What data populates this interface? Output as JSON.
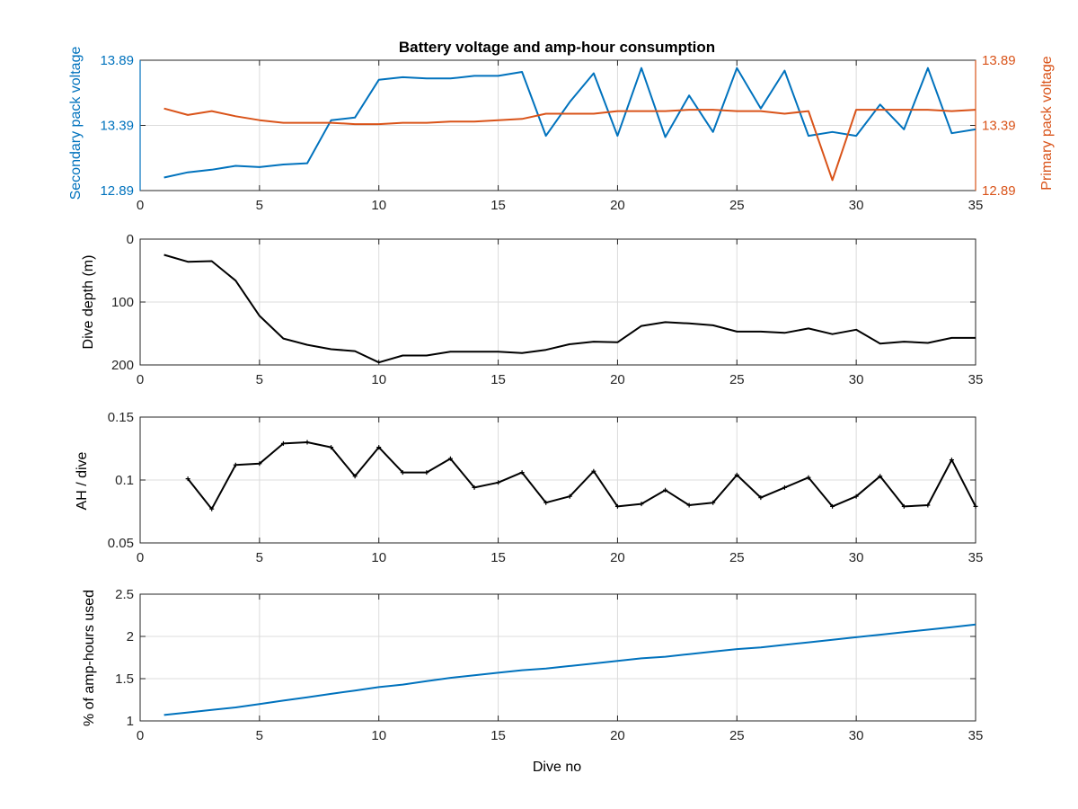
{
  "chart_data": [
    {
      "type": "line",
      "title": "Battery voltage and amp-hour consumption",
      "xlabel": "",
      "xlim": [
        0,
        35
      ],
      "xticks": [
        0,
        5,
        10,
        15,
        20,
        25,
        30,
        35
      ],
      "ylabel_left": "Secondary pack voltage",
      "ylabel_right": "Primary pack voltage",
      "ylim": [
        12.89,
        13.89
      ],
      "yticks": [
        12.89,
        13.39,
        13.89
      ],
      "ytick_labels": [
        "12.89",
        "13.39",
        "13.89"
      ],
      "grid": true,
      "series": [
        {
          "axis": "left",
          "color": "#0072BD",
          "x": [
            1,
            2,
            3,
            4,
            5,
            6,
            7,
            8,
            9,
            10,
            11,
            12,
            13,
            14,
            15,
            16,
            17,
            18,
            19,
            20,
            21,
            22,
            23,
            24,
            25,
            26,
            27,
            28,
            29,
            30,
            31,
            32,
            33,
            34,
            35
          ],
          "values": [
            12.99,
            13.03,
            13.05,
            13.08,
            13.07,
            13.09,
            13.1,
            13.43,
            13.45,
            13.74,
            13.76,
            13.75,
            13.75,
            13.77,
            13.77,
            13.8,
            13.31,
            13.57,
            13.79,
            13.31,
            13.83,
            13.3,
            13.62,
            13.34,
            13.83,
            13.52,
            13.81,
            13.31,
            13.34,
            13.31,
            13.55,
            13.36,
            13.83,
            13.33,
            13.36
          ]
        },
        {
          "axis": "right",
          "color": "#D95319",
          "x": [
            1,
            2,
            3,
            4,
            5,
            6,
            7,
            8,
            9,
            10,
            11,
            12,
            13,
            14,
            15,
            16,
            17,
            18,
            19,
            20,
            21,
            22,
            23,
            24,
            25,
            26,
            27,
            28,
            29,
            30,
            31,
            32,
            33,
            34,
            35
          ],
          "values": [
            13.52,
            13.47,
            13.5,
            13.46,
            13.43,
            13.41,
            13.41,
            13.41,
            13.4,
            13.4,
            13.41,
            13.41,
            13.42,
            13.42,
            13.43,
            13.44,
            13.48,
            13.48,
            13.48,
            13.5,
            13.5,
            13.5,
            13.51,
            13.51,
            13.5,
            13.5,
            13.48,
            13.5,
            12.97,
            13.51,
            13.51,
            13.51,
            13.51,
            13.5,
            13.51
          ]
        }
      ]
    },
    {
      "type": "line",
      "ylabel": "Dive depth (m)",
      "xlim": [
        0,
        35
      ],
      "xticks": [
        0,
        5,
        10,
        15,
        20,
        25,
        30,
        35
      ],
      "ylim": [
        0,
        200
      ],
      "y_reversed": true,
      "yticks": [
        0,
        100,
        200
      ],
      "ytick_labels": [
        "0",
        "100",
        "200"
      ],
      "grid": true,
      "series": [
        {
          "color": "#000000",
          "x": [
            1,
            2,
            3,
            4,
            5,
            6,
            7,
            8,
            9,
            10,
            11,
            12,
            13,
            14,
            15,
            16,
            17,
            18,
            19,
            20,
            21,
            22,
            23,
            24,
            25,
            26,
            27,
            28,
            29,
            30,
            31,
            32,
            33,
            34,
            35
          ],
          "values": [
            25,
            36,
            35,
            66,
            122,
            158,
            168,
            175,
            178,
            196,
            185,
            185,
            179,
            179,
            179,
            181,
            176,
            167,
            163,
            164,
            138,
            132,
            134,
            137,
            147,
            147,
            149,
            142,
            151,
            144,
            166,
            163,
            165,
            157,
            157
          ]
        }
      ]
    },
    {
      "type": "line",
      "ylabel": "AH / dive",
      "xlim": [
        0,
        35
      ],
      "xticks": [
        0,
        5,
        10,
        15,
        20,
        25,
        30,
        35
      ],
      "ylim": [
        0.05,
        0.15
      ],
      "yticks": [
        0.05,
        0.1,
        0.15
      ],
      "ytick_labels": [
        "0.05",
        "0.1",
        "0.15"
      ],
      "grid": true,
      "series": [
        {
          "color": "#000000",
          "markers": true,
          "x": [
            2,
            3,
            4,
            5,
            6,
            7,
            8,
            9,
            10,
            11,
            12,
            13,
            14,
            15,
            16,
            17,
            18,
            19,
            20,
            21,
            22,
            23,
            24,
            25,
            26,
            27,
            28,
            29,
            30,
            31,
            32,
            33,
            34,
            35
          ],
          "values": [
            0.101,
            0.077,
            0.112,
            0.113,
            0.129,
            0.13,
            0.126,
            0.103,
            0.126,
            0.106,
            0.106,
            0.117,
            0.094,
            0.098,
            0.106,
            0.082,
            0.087,
            0.107,
            0.079,
            0.081,
            0.092,
            0.08,
            0.082,
            0.104,
            0.086,
            0.094,
            0.102,
            0.079,
            0.087,
            0.103,
            0.079,
            0.08,
            0.116,
            0.079
          ]
        }
      ]
    },
    {
      "type": "line",
      "ylabel": "% of amp-hours used",
      "xlabel": "Dive no",
      "xlim": [
        0,
        35
      ],
      "xticks": [
        0,
        5,
        10,
        15,
        20,
        25,
        30,
        35
      ],
      "ylim": [
        1,
        2.5
      ],
      "yticks": [
        1,
        1.5,
        2,
        2.5
      ],
      "ytick_labels": [
        "1",
        "1.5",
        "2",
        "2.5"
      ],
      "grid": true,
      "series": [
        {
          "color": "#0072BD",
          "x": [
            1,
            2,
            3,
            4,
            5,
            6,
            7,
            8,
            9,
            10,
            11,
            12,
            13,
            14,
            15,
            16,
            17,
            18,
            19,
            20,
            21,
            22,
            23,
            24,
            25,
            26,
            27,
            28,
            29,
            30,
            31,
            32,
            33,
            34,
            35
          ],
          "values": [
            1.07,
            1.1,
            1.13,
            1.16,
            1.2,
            1.24,
            1.28,
            1.32,
            1.36,
            1.4,
            1.43,
            1.47,
            1.51,
            1.54,
            1.57,
            1.6,
            1.62,
            1.65,
            1.68,
            1.71,
            1.74,
            1.76,
            1.79,
            1.82,
            1.85,
            1.87,
            1.9,
            1.93,
            1.96,
            1.99,
            2.02,
            2.05,
            2.08,
            2.11,
            2.14
          ]
        }
      ]
    }
  ]
}
